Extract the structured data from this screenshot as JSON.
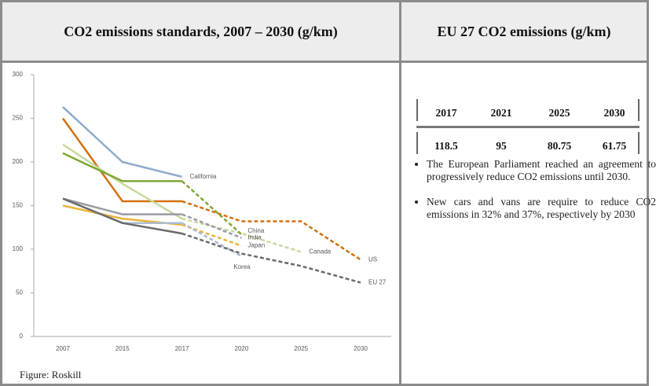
{
  "left_header": "CO2 emissions standards, 2007 – 2030 (g/km)",
  "right_header": "EU 27 CO2 emissions (g/km)",
  "source": "Figure: Roskill",
  "table": {
    "columns": [
      "2017",
      "2021",
      "2025",
      "2030"
    ],
    "values": [
      "118.5",
      "95",
      "80.75",
      "61.75"
    ]
  },
  "bullets": [
    "The European Parliament reached an agreement to progressively reduce CO2 emissions until 2030.",
    "New cars and vans are require to reduce CO2 emissions in 32% and 37%, respectively by 2030"
  ],
  "chart_data": {
    "type": "line",
    "categories": [
      "2007",
      "2015",
      "2017",
      "2020",
      "2025",
      "2030"
    ],
    "ylim": [
      0,
      300
    ],
    "yticks": [
      0,
      50,
      100,
      150,
      200,
      250,
      300
    ],
    "solid_until": "2017",
    "series": [
      {
        "name": "California",
        "color": "#8eabc9",
        "values": [
          263,
          200,
          183,
          null,
          null,
          null
        ]
      },
      {
        "name": "US",
        "color": "#d4700f",
        "values": [
          250,
          155,
          155,
          132,
          132,
          88
        ]
      },
      {
        "name": "Canada",
        "color": "#c5da9c",
        "values": [
          220,
          175,
          135,
          118,
          97,
          null
        ]
      },
      {
        "name": "China",
        "color": "#7fa632",
        "values": [
          210,
          178,
          178,
          117,
          null,
          null
        ]
      },
      {
        "name": "India",
        "color": "#9c9aa8",
        "values": [
          158,
          140,
          140,
          113,
          null,
          null
        ]
      },
      {
        "name": "Japan",
        "color": "#efb33a",
        "values": [
          150,
          135,
          128,
          104,
          null,
          null
        ]
      },
      {
        "name": "Korea",
        "color": "#a9bcd3",
        "values": [
          158,
          130,
          130,
          92,
          null,
          null
        ]
      },
      {
        "name": "EU 27",
        "color": "#6b6b6b",
        "values": [
          158,
          130,
          118,
          95,
          80.75,
          61.75
        ]
      }
    ]
  }
}
